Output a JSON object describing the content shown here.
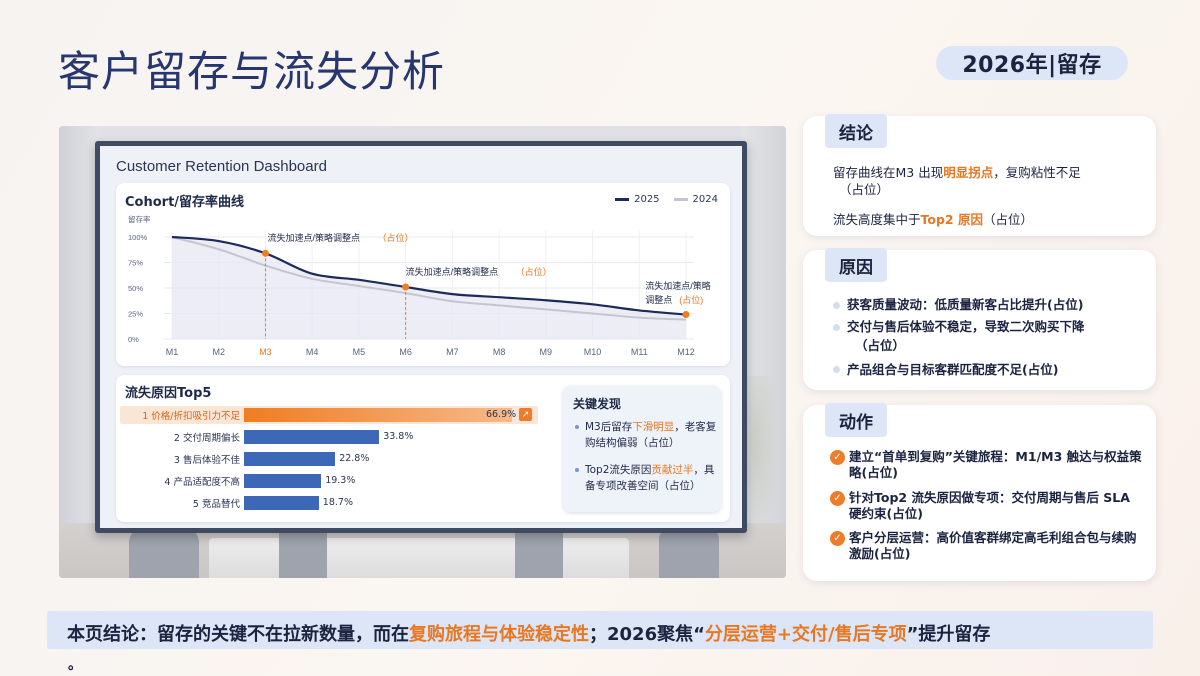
{
  "page": {
    "title": "客户留存与流失分析",
    "badge": "2026年|留存"
  },
  "dashboard": {
    "title": "Customer Retention Dashboard",
    "cohort": {
      "title": "Cohort/留存率曲线",
      "y_axis_label": "留存率",
      "annotation_1": "流失加速点/策略调整点",
      "annotation_2": "流失加速点/策略调整点",
      "annotation_3_line1": "流失加速点/策略",
      "annotation_3_line2": "调整点",
      "placeholder": "（占位）",
      "placeholder_short": "(占位)"
    },
    "top5": {
      "title": "流失原因Top5"
    },
    "findings": {
      "title": "关键发现",
      "item1_a": "M3后留存",
      "item1_hl": "下滑明显",
      "item1_b": "，老客复购结构偏弱（占位）",
      "item2_a": "Top2流失原因",
      "item2_hl": "贡献过半",
      "item2_b": "，具备专项改善空间（占位）"
    }
  },
  "chart_data": [
    {
      "type": "line",
      "title": "Cohort/留存率曲线",
      "xlabel": "",
      "ylabel": "留存率",
      "x": [
        "M1",
        "M2",
        "M3",
        "M4",
        "M5",
        "M6",
        "M7",
        "M8",
        "M9",
        "M10",
        "M11",
        "M12"
      ],
      "yticks": [
        "100%",
        "75%",
        "50%",
        "25%",
        "0%"
      ],
      "ylim": [
        0,
        100
      ],
      "legend_position": "top-right",
      "series": [
        {
          "name": "2025",
          "color": "#1e2a5c",
          "values": [
            100,
            96,
            84,
            64,
            58,
            51,
            44,
            41,
            38,
            34,
            28,
            24
          ]
        },
        {
          "name": "2024",
          "color": "#c4c6cf",
          "values": [
            100,
            88,
            72,
            59,
            52,
            45,
            37,
            33,
            29,
            25,
            21,
            19
          ]
        }
      ]
    },
    {
      "type": "bar",
      "title": "流失原因Top5",
      "categories": [
        "1 价格/折扣吸引力不足",
        "2 交付周期偏长",
        "3 售后体验不佳",
        "4 产品适配度不高",
        "5 竞品替代"
      ],
      "values": [
        66.9,
        33.8,
        22.8,
        19.3,
        18.7
      ],
      "value_labels": [
        "66.9%",
        "33.8%",
        "22.8%",
        "19.3%",
        "18.7%"
      ],
      "colors": [
        "#ef7d22",
        "#3d68b8",
        "#3d68b8",
        "#3d68b8",
        "#3d68b8"
      ],
      "xlim": [
        0,
        70
      ]
    }
  ],
  "right": {
    "conclusion": {
      "tag": "结论",
      "l1_a": "留存曲线在M3 出现",
      "l1_hl": "明显拐点",
      "l1_b": "，复购粘性不足",
      "l1_c": "（占位）",
      "l2_a": "流失高度集中于",
      "l2_hl": "Top2 原因",
      "l2_b": "（占位）"
    },
    "reasons": {
      "tag": "原因",
      "items": [
        "获客质量波动：低质量新客占比提升(占位)",
        "交付与售后体验不稳定，导致二次购买下降",
        "（占位）",
        "产品组合与目标客群匹配度不足(占位)"
      ]
    },
    "actions": {
      "tag": "动作",
      "items": [
        "建立“首单到复购”关键旅程：M1/M3 触达与权益策略(占位)",
        "针对Top2 流失原因做专项：交付周期与售后 SLA 硬约束(占位)",
        "客户分层运营：高价值客群绑定高毛利组合包与续购激励(占位)"
      ]
    }
  },
  "footer": {
    "a": "本页结论：留存的关键不在拉新数量，而在",
    "hl1": "复购旅程与体验稳定性",
    "b": "；2026聚焦“",
    "hl2": "分层运营+交付/售后专项",
    "c": "”提升留存",
    "tail": "。"
  },
  "colors": {
    "accent": "#ef7d22",
    "navy": "#1e2a5c",
    "tag_bg": "#dde6f7"
  }
}
